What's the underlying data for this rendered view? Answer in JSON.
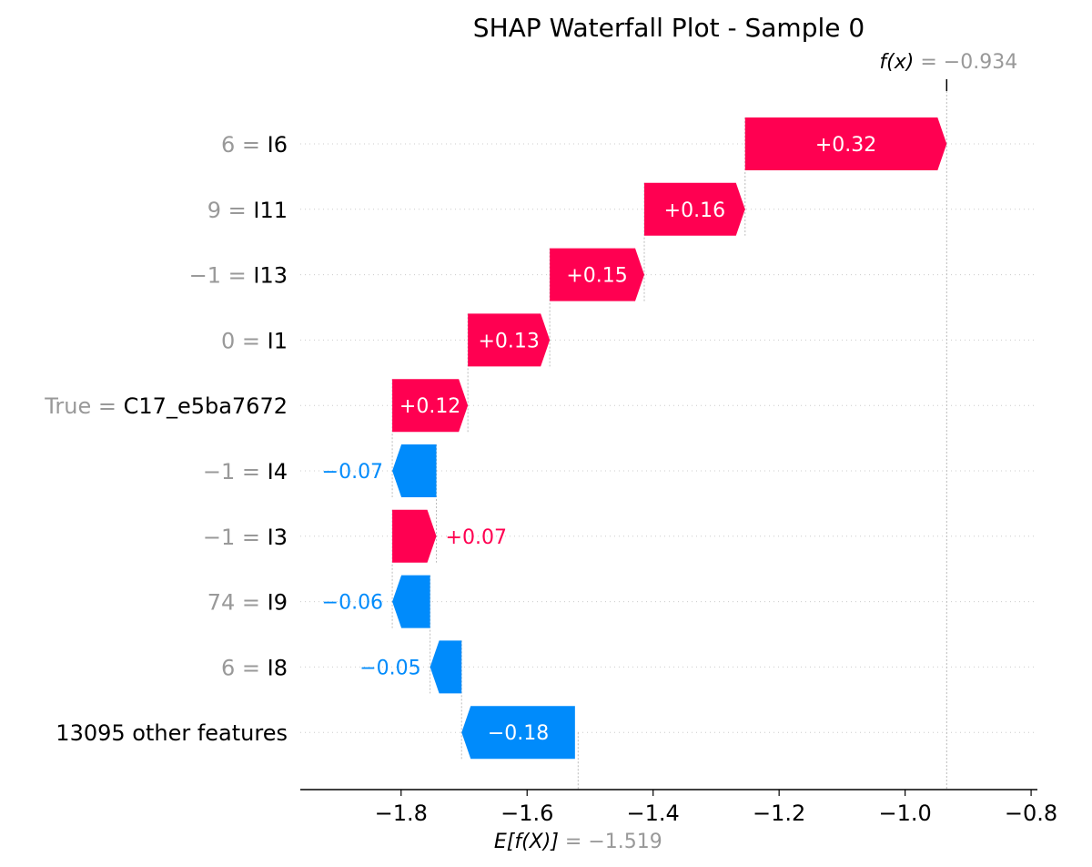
{
  "colors": {
    "positive": "#ff0051",
    "negative": "#008bfb",
    "muted": "#999999",
    "text": "#000000"
  },
  "chart_data": {
    "type": "waterfall",
    "title": "SHAP Waterfall Plot - Sample 0",
    "base_value": -1.519,
    "output_value": -0.934,
    "base_value_label": "= −1.519",
    "output_value_label": "= −0.934",
    "xlim": [
      -1.96,
      -0.79
    ],
    "xticks": [
      -1.8,
      -1.6,
      -1.4,
      -1.2,
      -1.0,
      -0.8
    ],
    "xtick_labels": [
      "−1.8",
      "−1.6",
      "−1.4",
      "−1.2",
      "−1.0",
      "−0.8"
    ],
    "features": [
      {
        "value": "6 =",
        "name": "I6",
        "shap": 0.32,
        "label": "+0.32"
      },
      {
        "value": "9 =",
        "name": "I11",
        "shap": 0.16,
        "label": "+0.16"
      },
      {
        "value": "−1 =",
        "name": "I13",
        "shap": 0.15,
        "label": "+0.15"
      },
      {
        "value": "0 =",
        "name": "I1",
        "shap": 0.13,
        "label": "+0.13"
      },
      {
        "value": "True =",
        "name": "C17_e5ba7672",
        "shap": 0.12,
        "label": "+0.12"
      },
      {
        "value": "−1 =",
        "name": "I4",
        "shap": -0.07,
        "label": "−0.07"
      },
      {
        "value": "−1 =",
        "name": "I3",
        "shap": 0.07,
        "label": "+0.07"
      },
      {
        "value": "74 =",
        "name": "I9",
        "shap": -0.06,
        "label": "−0.06"
      },
      {
        "value": "6 =",
        "name": "I8",
        "shap": -0.05,
        "label": "−0.05"
      },
      {
        "value": "",
        "name": "13095 other features",
        "shap": -0.18,
        "label": "−0.18"
      }
    ]
  }
}
